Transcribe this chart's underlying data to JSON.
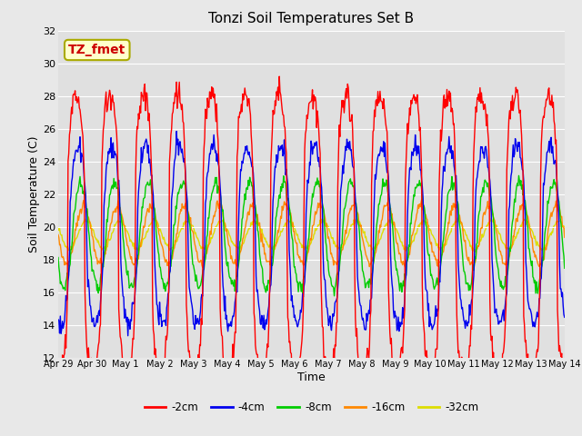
{
  "title": "Tonzi Soil Temperatures Set B",
  "xlabel": "Time",
  "ylabel": "Soil Temperature (C)",
  "ylim": [
    12,
    32
  ],
  "yticks": [
    12,
    14,
    16,
    18,
    20,
    22,
    24,
    26,
    28,
    30,
    32
  ],
  "annotation_text": "TZ_fmet",
  "annotation_bg": "#ffffcc",
  "annotation_fg": "#cc0000",
  "annotation_border": "#aaaa00",
  "colors": {
    "-2cm": "#ff0000",
    "-4cm": "#0000ee",
    "-8cm": "#00cc00",
    "-16cm": "#ff8800",
    "-32cm": "#dddd00"
  },
  "legend_labels": [
    "-2cm",
    "-4cm",
    "-8cm",
    "-16cm",
    "-32cm"
  ],
  "x_tick_labels": [
    "Apr 29",
    "Apr 30",
    "May 1",
    "May 2",
    "May 3",
    "May 4",
    "May 5",
    "May 6",
    "May 7",
    "May 8",
    "May 9",
    "May 10",
    "May 11",
    "May 12",
    "May 13",
    "May 14"
  ],
  "fig_bg": "#e8e8e8",
  "plot_bg": "#e0e0e0",
  "grid_color": "#ffffff",
  "figsize": [
    6.4,
    4.8
  ],
  "dpi": 100,
  "amp_2cm": 8.5,
  "amp_4cm": 5.5,
  "amp_8cm": 3.2,
  "amp_16cm": 1.8,
  "amp_32cm": 0.85,
  "mean_temp": 19.5,
  "phase_2cm": 0.28,
  "phase_4cm": 0.34,
  "phase_8cm": 0.42,
  "phase_16cm": 0.5,
  "phase_32cm": 0.58,
  "sharpness_2cm": 3.5,
  "sharpness_4cm": 2.0
}
